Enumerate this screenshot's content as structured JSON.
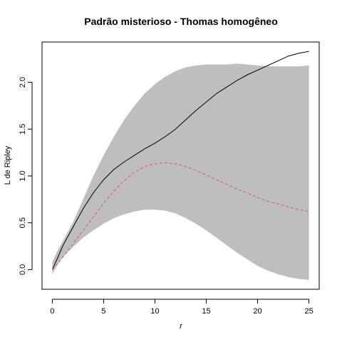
{
  "chart_data": {
    "type": "line",
    "title": "Padrão misterioso - Thomas homogêneo",
    "xlabel": "r",
    "ylabel": "L de Ripley",
    "xlim": [
      -1.0,
      26.0
    ],
    "ylim": [
      -0.21,
      2.43
    ],
    "x_ticks": [
      0,
      5,
      10,
      15,
      20,
      25
    ],
    "x_tick_labels": [
      "0",
      "5",
      "10",
      "15",
      "20",
      "25"
    ],
    "y_ticks": [
      0.0,
      0.5,
      1.0,
      1.5,
      2.0
    ],
    "y_tick_labels": [
      "0.0",
      "0.5",
      "1.0",
      "1.5",
      "2.0"
    ],
    "grid": false,
    "envelope": {
      "name": "",
      "color": "#bebebe",
      "x": [
        0,
        0.5,
        1,
        2,
        3,
        4,
        5,
        6,
        7,
        8,
        9,
        10,
        11,
        12,
        13,
        14,
        15,
        16,
        17,
        18,
        19,
        20,
        21,
        22,
        23,
        24,
        25
      ],
      "lower": [
        -0.05,
        0.05,
        0.13,
        0.24,
        0.34,
        0.42,
        0.49,
        0.55,
        0.59,
        0.62,
        0.64,
        0.64,
        0.63,
        0.6,
        0.55,
        0.49,
        0.42,
        0.34,
        0.26,
        0.18,
        0.11,
        0.04,
        -0.01,
        -0.05,
        -0.08,
        -0.1,
        -0.11
      ],
      "upper": [
        0.08,
        0.2,
        0.3,
        0.5,
        0.75,
        1.0,
        1.22,
        1.42,
        1.6,
        1.75,
        1.88,
        1.98,
        2.06,
        2.12,
        2.16,
        2.18,
        2.19,
        2.19,
        2.19,
        2.2,
        2.19,
        2.18,
        2.17,
        2.17,
        2.17,
        2.17,
        2.18
      ]
    },
    "series": [
      {
        "name": "",
        "color": "#000000",
        "style": "solid",
        "x": [
          0,
          0.5,
          1,
          2,
          3,
          4,
          5,
          6,
          7,
          8,
          9,
          10,
          11,
          12,
          13,
          14,
          15,
          16,
          17,
          18,
          19,
          20,
          21,
          22,
          23,
          24,
          25
        ],
        "y": [
          0.0,
          0.12,
          0.25,
          0.45,
          0.65,
          0.82,
          0.96,
          1.07,
          1.15,
          1.22,
          1.29,
          1.35,
          1.42,
          1.5,
          1.6,
          1.7,
          1.79,
          1.88,
          1.95,
          2.02,
          2.08,
          2.13,
          2.18,
          2.23,
          2.28,
          2.31,
          2.33
        ]
      },
      {
        "name": "",
        "color": "#df536b",
        "style": "dashed",
        "x": [
          0,
          0.5,
          1,
          2,
          3,
          4,
          5,
          6,
          7,
          8,
          9,
          10,
          11,
          12,
          13,
          14,
          15,
          16,
          17,
          18,
          19,
          20,
          21,
          22,
          23,
          24,
          25
        ],
        "y": [
          0.0,
          0.06,
          0.13,
          0.27,
          0.42,
          0.56,
          0.71,
          0.84,
          0.95,
          1.04,
          1.1,
          1.13,
          1.14,
          1.13,
          1.1,
          1.06,
          1.01,
          0.96,
          0.91,
          0.86,
          0.82,
          0.77,
          0.73,
          0.7,
          0.67,
          0.64,
          0.62
        ]
      }
    ]
  }
}
